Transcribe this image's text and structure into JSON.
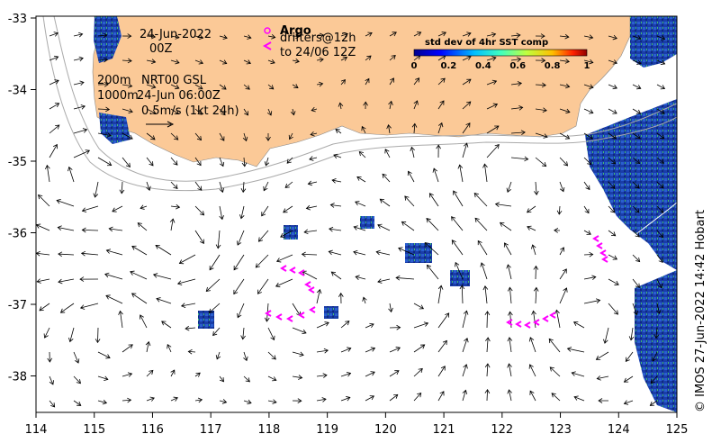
{
  "map": {
    "date_line1": "24-Jun-2022",
    "date_line2": "00Z",
    "legend_argo": "Argo",
    "legend_drifters": "drifters@12h",
    "legend_drifters2": "to 24/06 12Z",
    "depth_label": "200m",
    "depth_label2": "1000m",
    "product_label": "NRT00 GSL",
    "product_time": "24-Jun 06:00Z",
    "scale_label": "0.5m/s (1kt 24h)",
    "colorbar_title": "std dev of 4hr SST comp",
    "colorbar_ticks": [
      "0",
      "0.2",
      "0.4",
      "0.6",
      "0.8",
      "1"
    ],
    "credit": "© IMOS 27-Jun-2022 14:42 Hobart",
    "x_ticks": [
      "114",
      "115",
      "116",
      "117",
      "118",
      "119",
      "120",
      "121",
      "122",
      "123",
      "124",
      "125"
    ],
    "y_ticks": [
      "-33",
      "-34",
      "-35",
      "-36",
      "-37",
      "-38"
    ],
    "colors": {
      "land": "#fbc997",
      "ocean": "#ffffff",
      "drifter": "#ff00ff",
      "sst_patch": "#1a3da8"
    }
  }
}
